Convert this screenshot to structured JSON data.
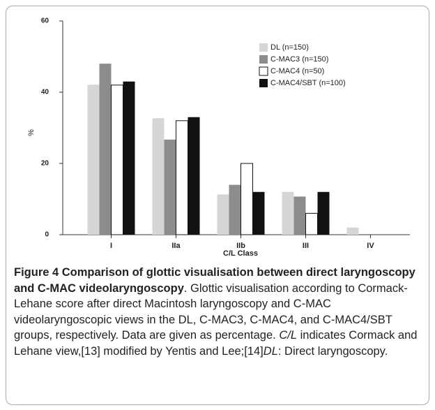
{
  "chart_data": {
    "type": "bar",
    "y_label": "%",
    "x_label": "C/L Class",
    "categories": [
      "I",
      "IIa",
      "IIb",
      "III",
      "IV"
    ],
    "series": [
      {
        "name": "DL (n=150)",
        "color": "#d6d6d6",
        "values": [
          42.1,
          32.7,
          11.3,
          12,
          2
        ]
      },
      {
        "name": "C-MAC3 (n=150)",
        "color": "#8c8c8c",
        "values": [
          48,
          26.7,
          14,
          10.7,
          0
        ]
      },
      {
        "name": "C-MAC4 (n=50)",
        "color": "#ffffff",
        "values": [
          42,
          32,
          20,
          6,
          0
        ]
      },
      {
        "name": "C-MAC4/SBT (n=100)",
        "color": "#111111",
        "values": [
          43,
          33,
          12,
          12,
          0
        ]
      }
    ],
    "ylim": [
      0,
      60
    ],
    "yticks": [
      0,
      20,
      40,
      60
    ],
    "grid": false,
    "legend": "upper right"
  },
  "caption": [
    {
      "text": "Figure 4 Comparison of glottic visualisation between direct laryngoscopy and C-MAC videolaryngoscopy",
      "style": "bold"
    },
    {
      "text": ". Glottic visualisation according to Cormack-Lehane score after direct Macintosh laryngoscopy and C-MAC videolaryngoscopic views in the DL, C-MAC3, C-MAC4, and C-MAC4/SBT groups, respectively. Data are given as percentage. ",
      "style": "normal"
    },
    {
      "text": "C/L",
      "style": "italic"
    },
    {
      "text": " indicates Cormack and Lehane view,[13] modified by Yentis and Lee;[14]",
      "style": "normal"
    },
    {
      "text": "DL",
      "style": "italic"
    },
    {
      "text": ": Direct laryngoscopy.",
      "style": "normal"
    }
  ]
}
